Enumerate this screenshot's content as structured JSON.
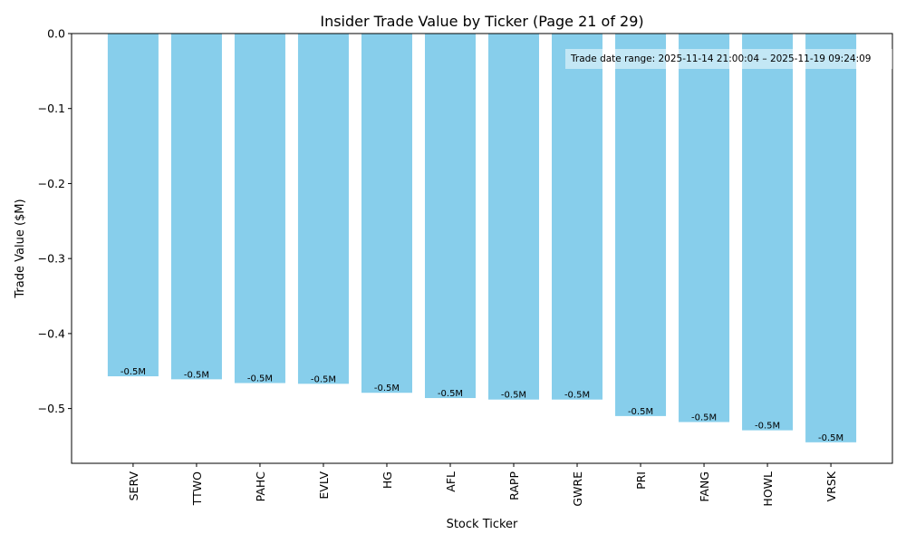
{
  "chart_data": {
    "type": "bar",
    "title": "Insider Trade Value by Ticker (Page 21 of 29)",
    "xlabel": "Stock Ticker",
    "ylabel": "Trade Value ($M)",
    "categories": [
      "SERV",
      "TTWO",
      "PAHC",
      "EVLV",
      "HG",
      "AFL",
      "RAPP",
      "GWRE",
      "PRI",
      "FANG",
      "HOWL",
      "VRSK"
    ],
    "values": [
      -0.457,
      -0.461,
      -0.466,
      -0.467,
      -0.479,
      -0.486,
      -0.488,
      -0.488,
      -0.51,
      -0.518,
      -0.529,
      -0.545
    ],
    "data_labels": [
      "-0.5M",
      "-0.5M",
      "-0.5M",
      "-0.5M",
      "-0.5M",
      "-0.5M",
      "-0.5M",
      "-0.5M",
      "-0.5M",
      "-0.5M",
      "-0.5M",
      "-0.5M"
    ],
    "ylim": [
      -0.573,
      0.0
    ],
    "yticks": [
      0.0,
      -0.1,
      -0.2,
      -0.3,
      -0.4,
      -0.5
    ],
    "ytick_labels": [
      "0.0",
      "−0.1",
      "−0.2",
      "−0.3",
      "−0.4",
      "−0.5"
    ],
    "bar_color": "#87ceeb",
    "grid": false,
    "annotation": "Trade date range: 2025-11-14 21:00:04 – 2025-11-19 09:24:09"
  }
}
